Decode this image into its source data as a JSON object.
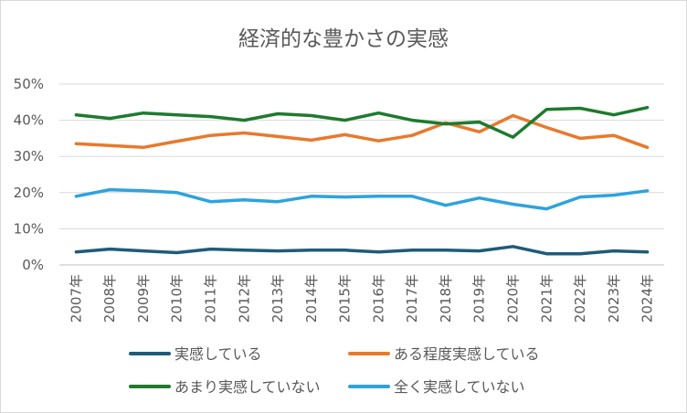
{
  "chart_data": {
    "type": "line",
    "title": "経済的な豊かさの実感",
    "xlabel": "",
    "ylabel": "",
    "ylim": [
      0,
      50
    ],
    "yticks": [
      "0%",
      "10%",
      "20%",
      "30%",
      "40%",
      "50%"
    ],
    "grid": true,
    "legend_position": "bottom",
    "categories": [
      "2007年",
      "2008年",
      "2009年",
      "2010年",
      "2011年",
      "2012年",
      "2013年",
      "2014年",
      "2015年",
      "2016年",
      "2017年",
      "2018年",
      "2019年",
      "2020年",
      "2021年",
      "2022年",
      "2023年",
      "2024年"
    ],
    "series": [
      {
        "name": "実感している",
        "color": "#1f5b7a",
        "values": [
          3.6,
          4.4,
          3.9,
          3.4,
          4.4,
          4.1,
          3.9,
          4.1,
          4.1,
          3.6,
          4.1,
          4.1,
          3.9,
          5.1,
          3.1,
          3.1,
          3.9,
          3.6
        ]
      },
      {
        "name": "ある程度実感している",
        "color": "#e8792d",
        "values": [
          33.5,
          33.0,
          32.5,
          34.2,
          35.8,
          36.5,
          35.5,
          34.5,
          36.0,
          34.3,
          35.8,
          39.3,
          36.8,
          41.3,
          38.0,
          35.0,
          35.8,
          32.5
        ]
      },
      {
        "name": "あまり実感していない",
        "color": "#1e7a2e",
        "values": [
          41.5,
          40.5,
          42.0,
          41.5,
          41.0,
          40.0,
          41.8,
          41.3,
          40.0,
          42.0,
          40.0,
          39.0,
          39.5,
          35.3,
          43.0,
          43.3,
          41.5,
          43.5
        ]
      },
      {
        "name": "全く実感していない",
        "color": "#2ea3dc",
        "values": [
          19.0,
          20.8,
          20.5,
          20.0,
          17.5,
          18.0,
          17.5,
          19.0,
          18.8,
          19.0,
          19.0,
          16.5,
          18.5,
          16.8,
          15.5,
          18.8,
          19.3,
          20.5
        ]
      }
    ]
  }
}
